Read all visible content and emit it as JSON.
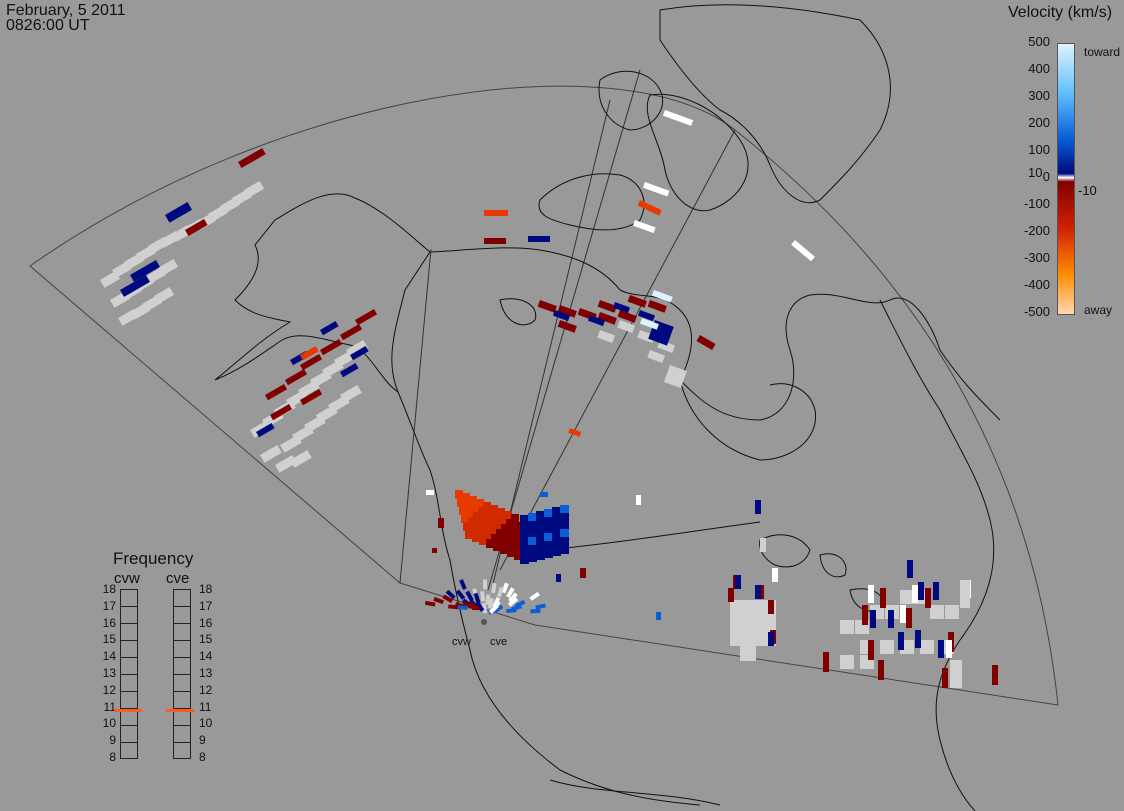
{
  "header": {
    "date": "February, 5 2011",
    "time": "0826:00 UT"
  },
  "velocity_scale": {
    "title": "Velocity (km/s)",
    "ticks": [
      "500",
      "400",
      "300",
      "200",
      "100",
      "10",
      "0",
      "-10",
      "-100",
      "-200",
      "-300",
      "-400",
      "-500"
    ],
    "toward_label": "toward",
    "away_label": "away"
  },
  "frequency_panel": {
    "title": "Frequency",
    "radars": [
      {
        "label": "cvw",
        "current_mhz": 10.8
      },
      {
        "label": "cve",
        "current_mhz": 10.8
      }
    ],
    "ticks": [
      "18",
      "17",
      "16",
      "15",
      "14",
      "13",
      "12",
      "11",
      "10",
      "9",
      "8"
    ]
  },
  "sites": [
    {
      "label": "cvw"
    },
    {
      "label": "cve"
    }
  ],
  "colors": {
    "background": "#999999",
    "toward_max": "#dff2ff",
    "toward_mid": "#0a5ed6",
    "toward_low": "#000a80",
    "away_low": "#800000",
    "away_mid": "#e83a00",
    "away_max": "#ffd8b0",
    "ground_scatter": "#d0d0d0",
    "frequency_marker": "#ff5a1a"
  }
}
